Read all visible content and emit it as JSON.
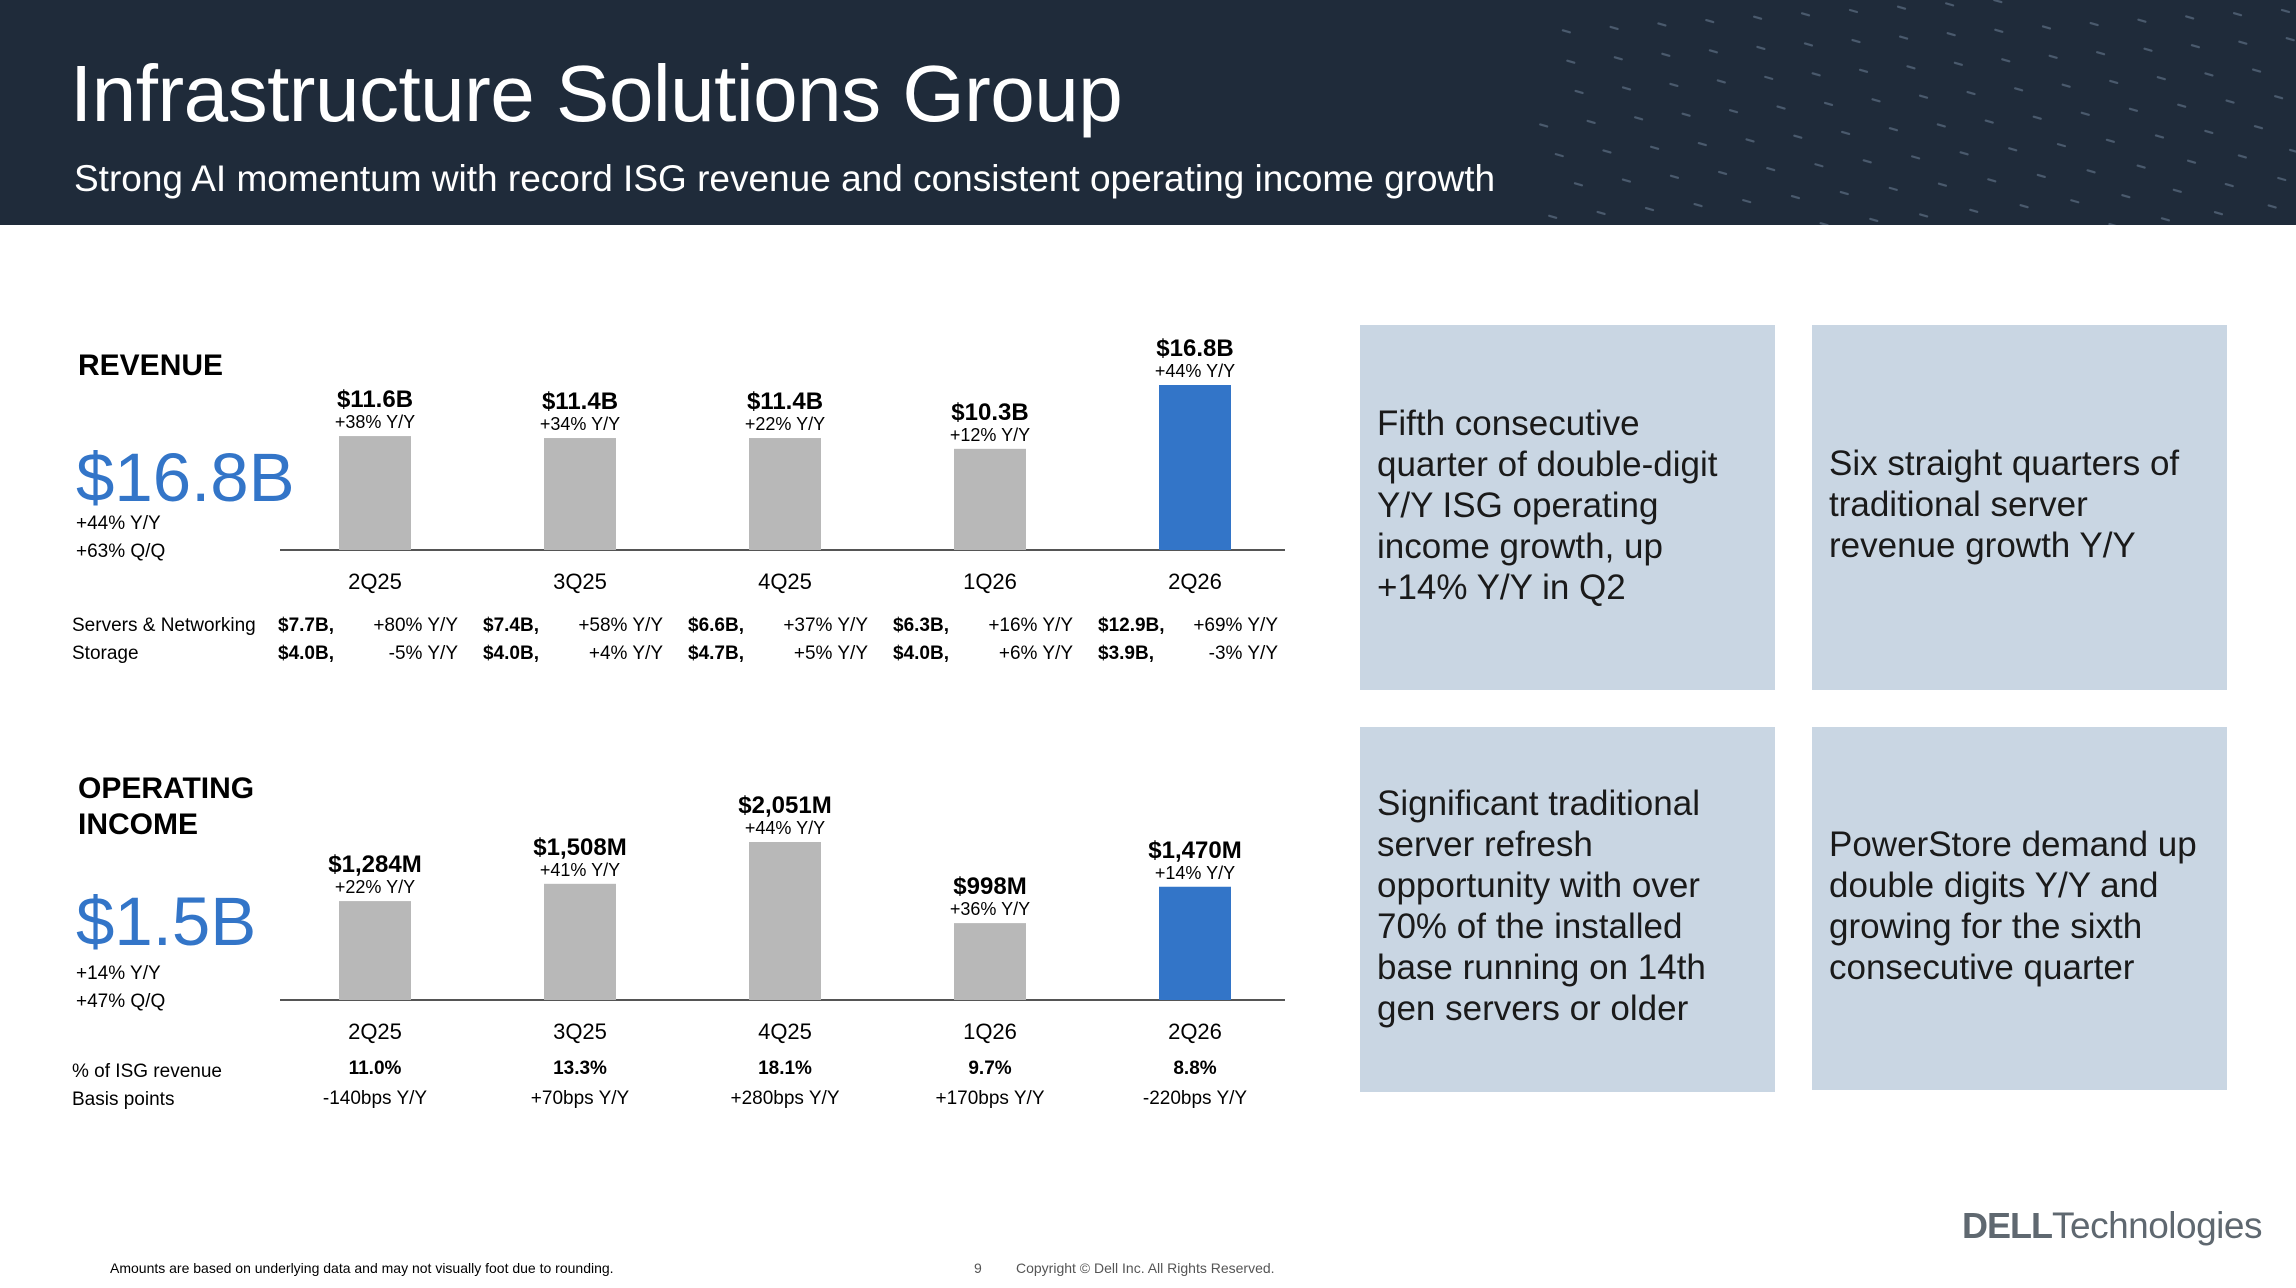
{
  "header": {
    "title": "Infrastructure Solutions Group",
    "subtitle": "Strong AI momentum with record ISG revenue and consistent operating income growth"
  },
  "revenue": {
    "label": "REVENUE",
    "value": "$16.8B",
    "yy": "+44% Y/Y",
    "qq": "+63% Q/Q",
    "row_labels": [
      "Servers & Networking",
      "Storage"
    ],
    "breakdown": [
      {
        "servers_val": "$7.7B,",
        "servers_chg": "+80% Y/Y",
        "storage_val": "$4.0B,",
        "storage_chg": "-5% Y/Y"
      },
      {
        "servers_val": "$7.4B,",
        "servers_chg": "+58% Y/Y",
        "storage_val": "$4.0B,",
        "storage_chg": "+4% Y/Y"
      },
      {
        "servers_val": "$6.6B,",
        "servers_chg": "+37% Y/Y",
        "storage_val": "$4.7B,",
        "storage_chg": "+5% Y/Y"
      },
      {
        "servers_val": "$6.3B,",
        "servers_chg": "+16% Y/Y",
        "storage_val": "$4.0B,",
        "storage_chg": "+6% Y/Y"
      },
      {
        "servers_val": "$12.9B,",
        "servers_chg": "+69% Y/Y",
        "storage_val": "$3.9B,",
        "storage_chg": "-3% Y/Y"
      }
    ]
  },
  "operating_income": {
    "label_line1": "OPERATING",
    "label_line2": "INCOME",
    "value": "$1.5B",
    "yy": "+14% Y/Y",
    "qq": "+47% Q/Q",
    "row_labels": [
      "% of ISG revenue",
      "Basis points"
    ],
    "breakdown": [
      {
        "pct": "11.0%",
        "bps": "-140bps Y/Y"
      },
      {
        "pct": "13.3%",
        "bps": "+70bps Y/Y"
      },
      {
        "pct": "18.1%",
        "bps": "+280bps Y/Y"
      },
      {
        "pct": "9.7%",
        "bps": "+170bps Y/Y"
      },
      {
        "pct": "8.8%",
        "bps": "-220bps Y/Y"
      }
    ]
  },
  "chart_data": [
    {
      "type": "bar",
      "categories": [
        "2Q25",
        "3Q25",
        "4Q25",
        "1Q26",
        "2Q26"
      ],
      "values": [
        11.6,
        11.4,
        11.4,
        10.3,
        16.8
      ],
      "value_labels": [
        "$11.6B",
        "$11.4B",
        "$11.4B",
        "$10.3B",
        "$16.8B"
      ],
      "growth_labels": [
        "+38% Y/Y",
        "+34% Y/Y",
        "+22% Y/Y",
        "+12% Y/Y",
        "+44% Y/Y"
      ],
      "colors": [
        "#b8b8b8",
        "#b8b8b8",
        "#b8b8b8",
        "#b8b8b8",
        "#3375c8"
      ],
      "ylim": [
        0,
        16.8
      ],
      "grid": false
    },
    {
      "type": "bar",
      "categories": [
        "2Q25",
        "3Q25",
        "4Q25",
        "1Q26",
        "2Q26"
      ],
      "values": [
        1284,
        1508,
        2051,
        998,
        1470
      ],
      "value_labels": [
        "$1,284M",
        "$1,508M",
        "$2,051M",
        "$998M",
        "$1,470M"
      ],
      "growth_labels": [
        "+22% Y/Y",
        "+41% Y/Y",
        "+44% Y/Y",
        "+36% Y/Y",
        "+14% Y/Y"
      ],
      "colors": [
        "#b8b8b8",
        "#b8b8b8",
        "#b8b8b8",
        "#b8b8b8",
        "#3375c8"
      ],
      "ylim": [
        0,
        2051
      ],
      "grid": false
    }
  ],
  "cards": [
    "Fifth consecutive quarter of double-digit Y/Y ISG operating income growth, up +14% Y/Y in Q2",
    "Six straight quarters of traditional server revenue growth Y/Y",
    "Significant traditional server refresh opportunity with over 70% of the installed base running on 14th gen servers or older",
    "PowerStore demand up double digits Y/Y and growing for the sixth consecutive quarter"
  ],
  "footer": {
    "note": "Amounts are based on underlying data and may not visually foot due to rounding.",
    "page_number": "9",
    "copyright": "Copyright © Dell Inc. All Rights Reserved."
  },
  "logo": {
    "bold": "DELL",
    "rest": "Technologies"
  }
}
